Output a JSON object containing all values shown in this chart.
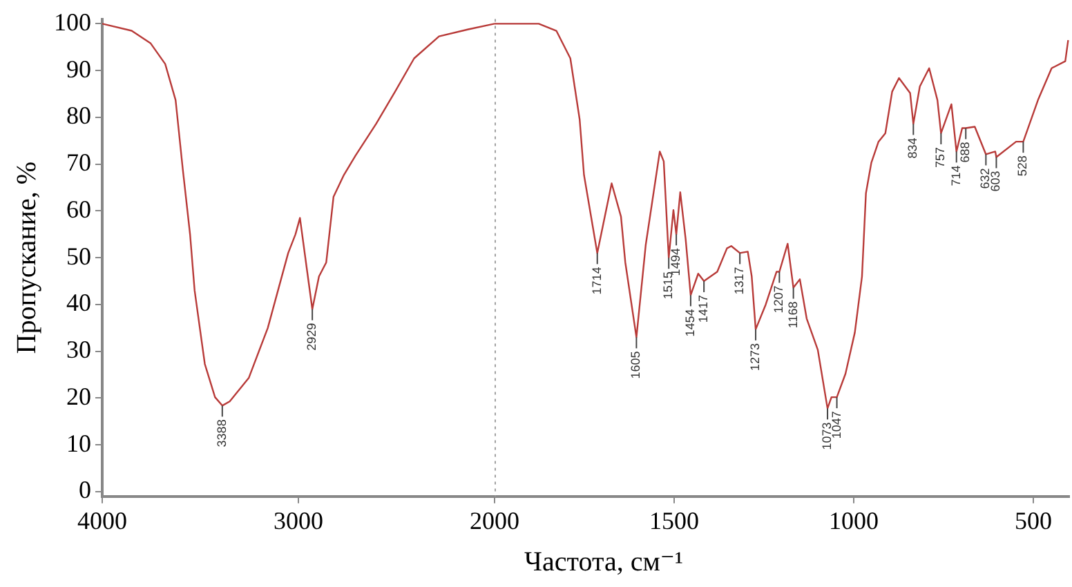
{
  "chart_data": [
    {
      "type": "line",
      "ylabel": "Пропускание, %",
      "xlim": [
        4000,
        2000
      ],
      "xticks": [
        4000,
        3000
      ],
      "ylim": [
        -1,
        101
      ],
      "yticks": [
        0,
        10,
        20,
        30,
        40,
        50,
        60,
        70,
        80,
        90,
        100
      ],
      "grid": false,
      "legend": false,
      "marker": "none",
      "line_style": "solid",
      "series": [
        {
          "color": "#b83a38",
          "x": [
            4000,
            3850,
            3753,
            3679,
            3626,
            3589,
            3552,
            3529,
            3477,
            3425,
            3388,
            3350,
            3253,
            3156,
            3052,
            3015,
            2992,
            2955,
            2929,
            2895,
            2858,
            2821,
            2768,
            2709,
            2604,
            2507,
            2410,
            2283,
            2134,
            2000
          ],
          "values": [
            100,
            98.5,
            95.8,
            91.4,
            83.7,
            68.8,
            54.9,
            43,
            27.3,
            20.2,
            18.4,
            19.3,
            24.3,
            35,
            51,
            55,
            58.5,
            47,
            39,
            46,
            49,
            63,
            67.7,
            71.8,
            78.6,
            85.5,
            92.6,
            97.3,
            98.8,
            100
          ]
        }
      ],
      "annotations": [
        {
          "text": "3388",
          "x": 3388,
          "y": 18.4
        },
        {
          "text": "2929",
          "x": 2929,
          "y": 39
        }
      ]
    },
    {
      "type": "line",
      "xlabel": "Частота, см⁻¹",
      "xlim": [
        2000,
        400
      ],
      "xticks": [
        2000,
        1500,
        1000,
        500
      ],
      "ylim": [
        -1,
        101
      ],
      "tick_labels": "x",
      "grid": false,
      "legend": false,
      "marker": "none",
      "line_style": "solid",
      "ref_lines": [
        {
          "axis": "x",
          "value": 2000,
          "color": "#a0a0a0",
          "line_style": "dotted"
        }
      ],
      "series": [
        {
          "color": "#b83a38",
          "x": [
            2000,
            1877,
            1828,
            1789,
            1763,
            1751,
            1714,
            1674,
            1648,
            1636,
            1605,
            1579,
            1540,
            1529,
            1515,
            1502,
            1494,
            1483,
            1468,
            1454,
            1433,
            1417,
            1380,
            1353,
            1341,
            1317,
            1295,
            1284,
            1273,
            1245,
            1215,
            1207,
            1184,
            1168,
            1150,
            1131,
            1100,
            1073,
            1062,
            1047,
            1023,
            997,
            977,
            966,
            951,
            931,
            912,
            893,
            874,
            843,
            834,
            816,
            790,
            767,
            757,
            728,
            714,
            698,
            688,
            663,
            632,
            606,
            603,
            548,
            528,
            487,
            449,
            411,
            403
          ],
          "values": [
            100,
            100,
            98.5,
            92.6,
            79.5,
            67.7,
            51,
            65.9,
            58.8,
            49,
            33,
            52.8,
            72.7,
            70.6,
            50,
            60.2,
            55,
            64,
            54,
            42,
            46.6,
            45,
            47,
            52,
            52.5,
            51,
            51.3,
            46,
            34.7,
            40,
            47,
            47,
            53,
            43.6,
            45.4,
            37,
            30.3,
            17.8,
            20.2,
            20.2,
            25.2,
            34,
            46,
            63.8,
            70.3,
            74.8,
            76.6,
            85.5,
            88.4,
            85.2,
            78.6,
            86.6,
            90.5,
            83.7,
            76.6,
            82.8,
            72.7,
            77.7,
            77.7,
            78,
            72.1,
            72.7,
            71.5,
            74.8,
            74.8,
            83.7,
            90.5,
            92,
            96.5
          ]
        }
      ],
      "annotations": [
        {
          "text": "1714",
          "x": 1714,
          "y": 51
        },
        {
          "text": "1605",
          "x": 1605,
          "y": 33
        },
        {
          "text": "1515",
          "x": 1515,
          "y": 50
        },
        {
          "text": "1494",
          "x": 1494,
          "y": 55
        },
        {
          "text": "1454",
          "x": 1454,
          "y": 42
        },
        {
          "text": "1417",
          "x": 1417,
          "y": 45
        },
        {
          "text": "1317",
          "x": 1317,
          "y": 51
        },
        {
          "text": "1273",
          "x": 1273,
          "y": 34.7
        },
        {
          "text": "1207",
          "x": 1207,
          "y": 47
        },
        {
          "text": "1168",
          "x": 1168,
          "y": 43.6
        },
        {
          "text": "1073",
          "x": 1073,
          "y": 17.8
        },
        {
          "text": "1047",
          "x": 1047,
          "y": 20.2
        },
        {
          "text": "834",
          "x": 834,
          "y": 78.6
        },
        {
          "text": "757",
          "x": 757,
          "y": 76.6
        },
        {
          "text": "714",
          "x": 714,
          "y": 72.7
        },
        {
          "text": "688",
          "x": 688,
          "y": 77.7
        },
        {
          "text": "632",
          "x": 632,
          "y": 72.1
        },
        {
          "text": "603",
          "x": 603,
          "y": 71.5
        },
        {
          "text": "528",
          "x": 528,
          "y": 74.8
        }
      ]
    }
  ]
}
